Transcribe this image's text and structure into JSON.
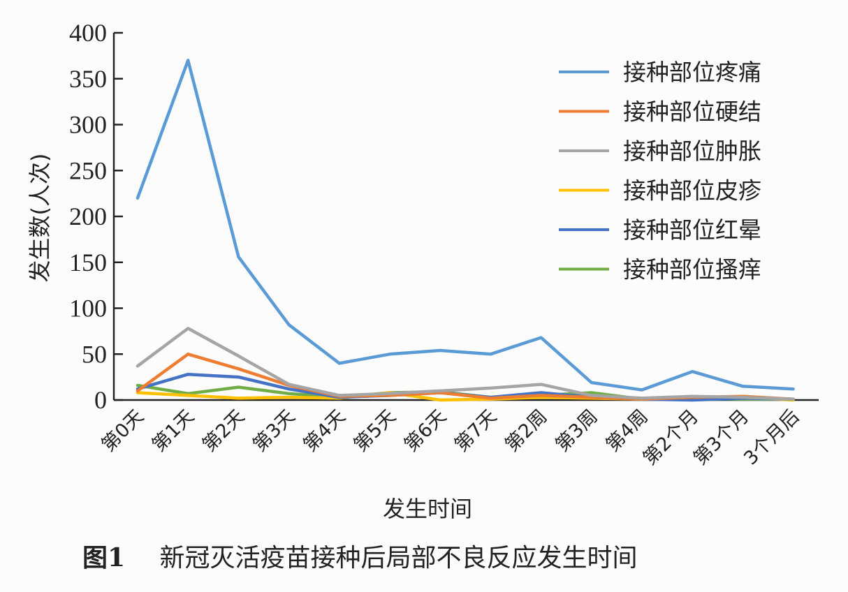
{
  "chart_data": {
    "type": "line",
    "title": "",
    "xlabel": "发生时间",
    "ylabel": "发生数(人次)",
    "ylim": [
      0,
      400
    ],
    "yticks": [
      0,
      50,
      100,
      150,
      200,
      250,
      300,
      350,
      400
    ],
    "grid": false,
    "legend_position": "upper right",
    "categories": [
      "第0天",
      "第1天",
      "第2天",
      "第3天",
      "第4天",
      "第5天",
      "第6天",
      "第7天",
      "第2周",
      "第3周",
      "第4周",
      "第2个月",
      "第3个月",
      "3个月后"
    ],
    "series": [
      {
        "name": "接种部位疼痛",
        "color": "#5b9bd5",
        "values": [
          220,
          370,
          156,
          82,
          40,
          50,
          54,
          50,
          68,
          19,
          11,
          31,
          15,
          12
        ]
      },
      {
        "name": "接种部位硬结",
        "color": "#ed7d31",
        "values": [
          10,
          50,
          34,
          16,
          4,
          5,
          8,
          2,
          5,
          3,
          1,
          3,
          4,
          1
        ]
      },
      {
        "name": "接种部位肿胀",
        "color": "#a5a5a5",
        "values": [
          37,
          78,
          48,
          17,
          5,
          7,
          10,
          13,
          17,
          5,
          2,
          4,
          3,
          1
        ]
      },
      {
        "name": "接种部位皮疹",
        "color": "#ffc000",
        "values": [
          8,
          5,
          2,
          3,
          2,
          8,
          0,
          1,
          3,
          2,
          1,
          2,
          3,
          0
        ]
      },
      {
        "name": "接种部位红晕",
        "color": "#4472c4",
        "values": [
          12,
          28,
          25,
          12,
          3,
          5,
          8,
          3,
          8,
          3,
          1,
          0,
          2,
          1
        ]
      },
      {
        "name": "接种部位搔痒",
        "color": "#70ad47",
        "values": [
          16,
          7,
          14,
          7,
          3,
          8,
          9,
          3,
          5,
          8,
          1,
          2,
          1,
          1
        ]
      }
    ]
  },
  "caption": {
    "figure_number": "图1",
    "text": "新冠灭活疫苗接种后局部不良反应发生时间"
  }
}
